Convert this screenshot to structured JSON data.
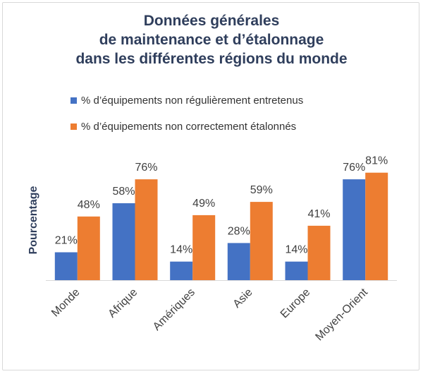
{
  "colors": {
    "series_blue": "#4472c4",
    "series_orange": "#ed7d31",
    "axis": "#d9d9d9"
  },
  "chart_data": {
    "type": "bar",
    "title_lines": [
      "Données générales",
      "de maintenance et d’étalonnage",
      "dans les différentes régions du monde"
    ],
    "ylabel": "Pourcentage",
    "xlabel": "",
    "ylim": [
      0,
      100
    ],
    "grid": false,
    "legend_position": "top",
    "categories": [
      "Monde",
      "Afrique",
      "Amériques",
      "Asie",
      "Europe",
      "Moyen-Orient"
    ],
    "series": [
      {
        "name": "% d’équipements non régulièrement entretenus",
        "color": "#4472c4",
        "values": [
          21,
          58,
          14,
          28,
          14,
          76
        ],
        "labels": [
          "21%",
          "58%",
          "14%",
          "28%",
          "14%",
          "76%"
        ]
      },
      {
        "name": "% d’équipements non correctement étalonnés",
        "color": "#ed7d31",
        "values": [
          48,
          76,
          49,
          59,
          41,
          81
        ],
        "labels": [
          "48%",
          "76%",
          "49%",
          "59%",
          "41%",
          "81%"
        ]
      }
    ]
  }
}
